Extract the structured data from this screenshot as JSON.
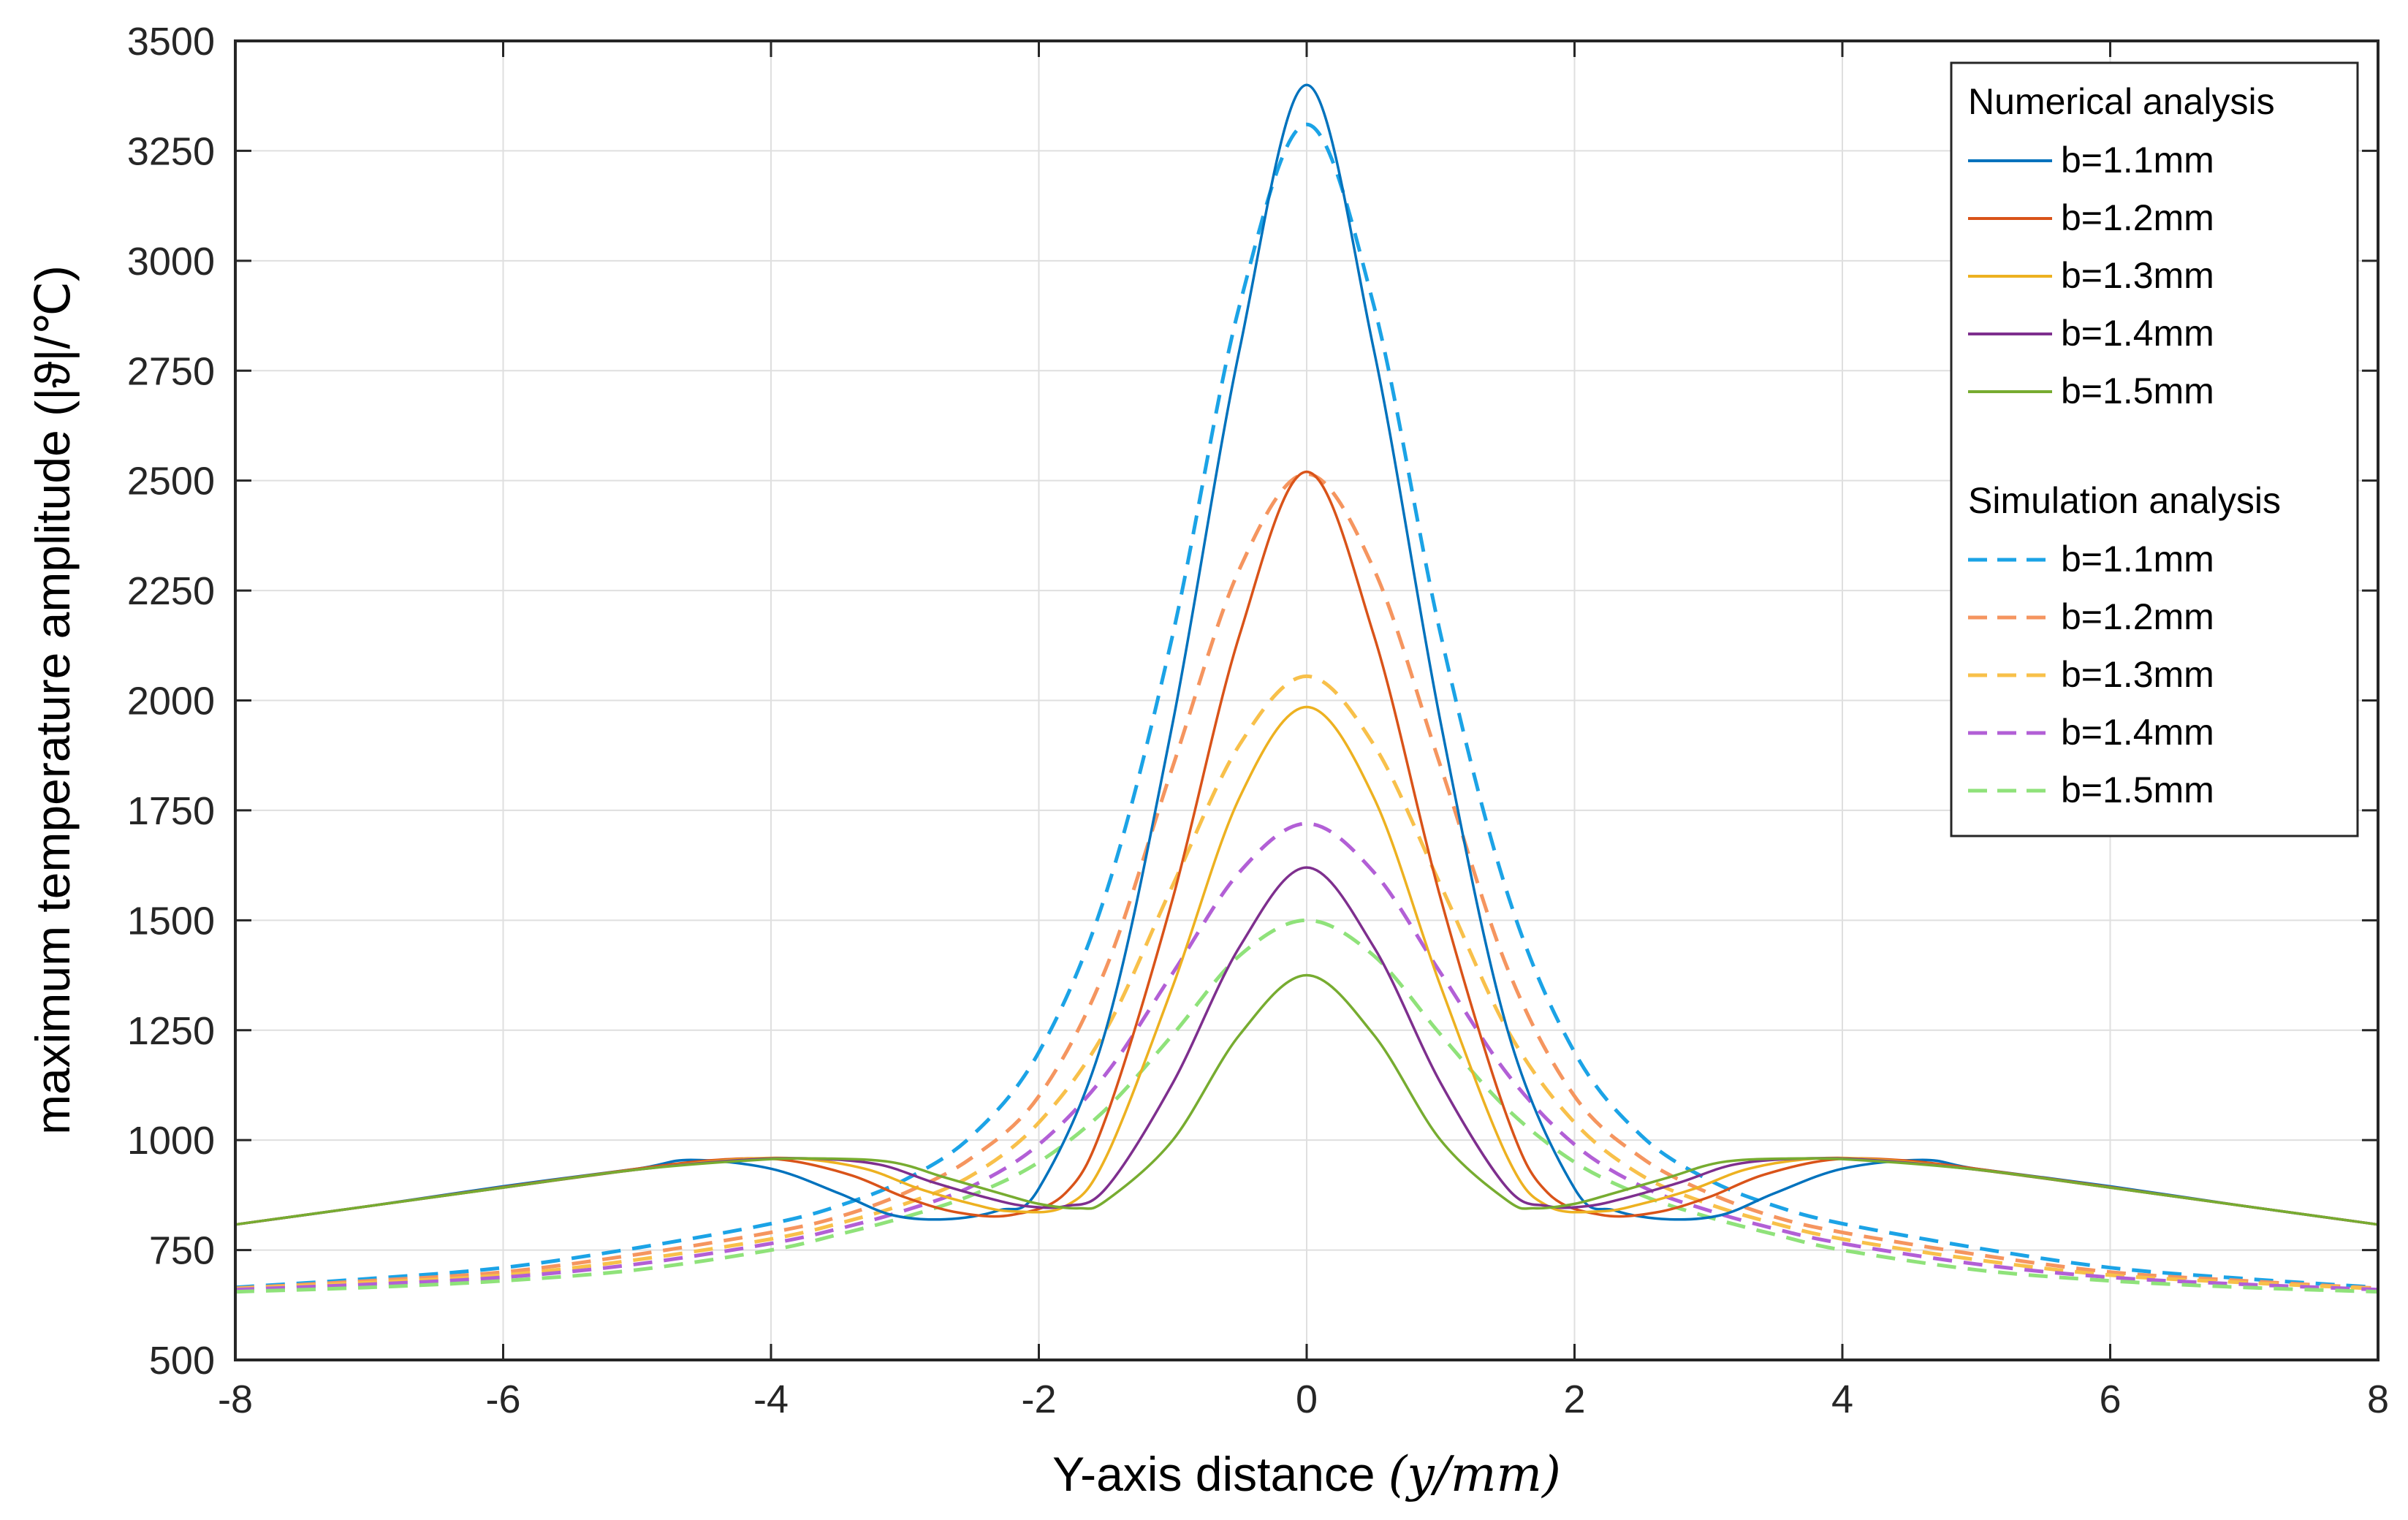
{
  "chart_data": {
    "type": "line",
    "title": "",
    "xlabel": "Y-axis distance",
    "xlabel_unit": "(y/mm)",
    "ylabel": "maximum temperature amplitude (|ϑ|/℃)",
    "xlim": [
      -8,
      8
    ],
    "ylim": [
      500,
      3500
    ],
    "xticks": [
      -8,
      -6,
      -4,
      -2,
      0,
      2,
      4,
      6,
      8
    ],
    "yticks": [
      500,
      750,
      1000,
      1250,
      1500,
      1750,
      2000,
      2250,
      2500,
      2750,
      3000,
      3250,
      3500
    ],
    "grid": true,
    "legend_position": "top-right",
    "legend": {
      "group_numerical": "Numerical analysis",
      "group_simulation": "Simulation analysis",
      "numerical_labels": [
        "b=1.1mm",
        "b=1.2mm",
        "b=1.3mm",
        "b=1.4mm",
        "b=1.5mm"
      ],
      "simulation_labels": [
        "b=1.1mm",
        "b=1.2mm",
        "b=1.3mm",
        "b=1.4mm",
        "b=1.5mm"
      ]
    },
    "colors": {
      "numerical": [
        "#0072BD",
        "#D95319",
        "#EDB120",
        "#7E2F8E",
        "#77AC30"
      ],
      "simulation": [
        "#1BA3E6",
        "#F5955F",
        "#F8C04A",
        "#B25FD6",
        "#8FE27A"
      ]
    },
    "series": [
      {
        "name": "b=1.1mm",
        "group": "Numerical analysis",
        "style": "solid",
        "x": [
          -8,
          -7,
          -6,
          -5,
          -4.6,
          -4,
          -3.5,
          -3.1,
          -2.7,
          -2.3,
          -2,
          -1.5,
          -1,
          -0.5,
          0,
          0.5,
          1,
          1.5,
          2,
          2.3,
          2.7,
          3.1,
          3.5,
          4,
          4.6,
          5,
          6,
          7,
          8
        ],
        "y": [
          808,
          850,
          895,
          935,
          955,
          935,
          880,
          830,
          820,
          840,
          890,
          1250,
          1950,
          2800,
          3400,
          2800,
          1950,
          1250,
          890,
          840,
          820,
          830,
          880,
          935,
          955,
          935,
          895,
          850,
          808
        ]
      },
      {
        "name": "b=1.2mm",
        "group": "Numerical analysis",
        "style": "solid",
        "x": [
          -8,
          -7,
          -6,
          -5,
          -4.4,
          -3.9,
          -3.4,
          -3,
          -2.6,
          -2.2,
          -1.8,
          -1.5,
          -1,
          -0.5,
          0,
          0.5,
          1,
          1.5,
          1.8,
          2.2,
          2.6,
          3,
          3.4,
          3.9,
          4.4,
          5,
          6,
          7,
          8
        ],
        "y": [
          808,
          850,
          893,
          935,
          955,
          955,
          920,
          870,
          835,
          830,
          880,
          1050,
          1550,
          2150,
          2520,
          2150,
          1550,
          1050,
          880,
          830,
          835,
          870,
          920,
          955,
          955,
          935,
          893,
          850,
          808
        ]
      },
      {
        "name": "b=1.3mm",
        "group": "Numerical analysis",
        "style": "solid",
        "x": [
          -8,
          -7,
          -6,
          -5,
          -4.3,
          -3.8,
          -3.3,
          -2.9,
          -2.5,
          -2.2,
          -1.8,
          -1.5,
          -1,
          -0.5,
          0,
          0.5,
          1,
          1.5,
          1.8,
          2.2,
          2.5,
          2.9,
          3.3,
          3.8,
          4.3,
          5,
          6,
          7,
          8
        ],
        "y": [
          808,
          850,
          892,
          933,
          955,
          958,
          935,
          890,
          855,
          838,
          850,
          960,
          1350,
          1780,
          1985,
          1780,
          1350,
          960,
          850,
          838,
          855,
          890,
          935,
          958,
          955,
          933,
          892,
          850,
          808
        ]
      },
      {
        "name": "b=1.4mm",
        "group": "Numerical analysis",
        "style": "solid",
        "x": [
          -8,
          -7,
          -6,
          -5,
          -4.2,
          -3.7,
          -3.2,
          -2.8,
          -2.4,
          -2.1,
          -1.8,
          -1.5,
          -1,
          -0.5,
          0,
          0.5,
          1,
          1.5,
          1.8,
          2.1,
          2.4,
          2.8,
          3.2,
          3.7,
          4.2,
          5,
          6,
          7,
          8
        ],
        "y": [
          808,
          850,
          892,
          933,
          955,
          958,
          945,
          905,
          870,
          850,
          850,
          890,
          1130,
          1440,
          1620,
          1440,
          1130,
          890,
          850,
          850,
          870,
          905,
          945,
          958,
          955,
          933,
          892,
          850,
          808
        ]
      },
      {
        "name": "b=1.5mm",
        "group": "Numerical analysis",
        "style": "solid",
        "x": [
          -8,
          -7,
          -6,
          -5,
          -4.1,
          -3.6,
          -3.1,
          -2.7,
          -2.3,
          -2,
          -1.7,
          -1.5,
          -1,
          -0.5,
          0,
          0.5,
          1,
          1.5,
          1.7,
          2,
          2.3,
          2.7,
          3.1,
          3.6,
          4.1,
          5,
          6,
          7,
          8
        ],
        "y": [
          808,
          850,
          892,
          933,
          955,
          958,
          950,
          915,
          880,
          855,
          845,
          862,
          1000,
          1240,
          1375,
          1240,
          1000,
          862,
          845,
          855,
          880,
          915,
          950,
          958,
          955,
          933,
          892,
          850,
          808
        ]
      },
      {
        "name": "b=1.1mm",
        "group": "Simulation analysis",
        "style": "dashed",
        "x": [
          -8,
          -7,
          -6,
          -5,
          -4,
          -3.5,
          -3,
          -2.5,
          -2,
          -1.5,
          -1,
          -0.5,
          0,
          0.5,
          1,
          1.5,
          2,
          2.5,
          3,
          3.5,
          4,
          5,
          6,
          7,
          8
        ],
        "y": [
          665,
          685,
          710,
          755,
          810,
          850,
          910,
          1010,
          1200,
          1560,
          2150,
          2900,
          3310,
          2900,
          2150,
          1560,
          1200,
          1010,
          910,
          850,
          810,
          755,
          710,
          685,
          665
        ]
      },
      {
        "name": "b=1.2mm",
        "group": "Simulation analysis",
        "style": "dashed",
        "x": [
          -8,
          -7,
          -6,
          -5,
          -4,
          -3.5,
          -3,
          -2.5,
          -2,
          -1.5,
          -1,
          -0.5,
          0,
          0.5,
          1,
          1.5,
          2,
          2.5,
          3,
          3.5,
          4,
          5,
          6,
          7,
          8
        ],
        "y": [
          663,
          680,
          700,
          740,
          790,
          825,
          880,
          960,
          1100,
          1390,
          1850,
          2300,
          2515,
          2300,
          1850,
          1390,
          1100,
          960,
          880,
          825,
          790,
          740,
          700,
          680,
          663
        ]
      },
      {
        "name": "b=1.3mm",
        "group": "Simulation analysis",
        "style": "dashed",
        "x": [
          -8,
          -7,
          -6,
          -5,
          -4,
          -3.5,
          -3,
          -2.5,
          -2,
          -1.5,
          -1,
          -0.5,
          0,
          0.5,
          1,
          1.5,
          2,
          2.5,
          3,
          3.5,
          4,
          5,
          6,
          7,
          8
        ],
        "y": [
          662,
          676,
          693,
          728,
          775,
          810,
          855,
          920,
          1040,
          1250,
          1580,
          1900,
          2055,
          1900,
          1580,
          1250,
          1040,
          920,
          855,
          810,
          775,
          728,
          693,
          676,
          662
        ]
      },
      {
        "name": "b=1.4mm",
        "group": "Simulation analysis",
        "style": "dashed",
        "x": [
          -8,
          -7,
          -6,
          -5,
          -4,
          -3.5,
          -3,
          -2.5,
          -2,
          -1.5,
          -1,
          -0.5,
          0,
          0.5,
          1,
          1.5,
          2,
          2.5,
          3,
          3.5,
          4,
          5,
          6,
          7,
          8
        ],
        "y": [
          660,
          672,
          688,
          718,
          765,
          798,
          840,
          895,
          990,
          1150,
          1380,
          1610,
          1720,
          1610,
          1380,
          1150,
          990,
          895,
          840,
          798,
          765,
          718,
          688,
          672,
          660
        ]
      },
      {
        "name": "b=1.5mm",
        "group": "Simulation analysis",
        "style": "dashed",
        "x": [
          -8,
          -7,
          -6,
          -5,
          -4,
          -3.5,
          -3,
          -2.5,
          -2,
          -1.5,
          -1,
          -0.5,
          0,
          0.5,
          1,
          1.5,
          2,
          2.5,
          3,
          3.5,
          4,
          5,
          6,
          7,
          8
        ],
        "y": [
          655,
          665,
          680,
          705,
          750,
          785,
          825,
          875,
          950,
          1070,
          1240,
          1420,
          1500,
          1420,
          1240,
          1070,
          950,
          875,
          825,
          785,
          750,
          705,
          680,
          665,
          655
        ]
      }
    ]
  }
}
